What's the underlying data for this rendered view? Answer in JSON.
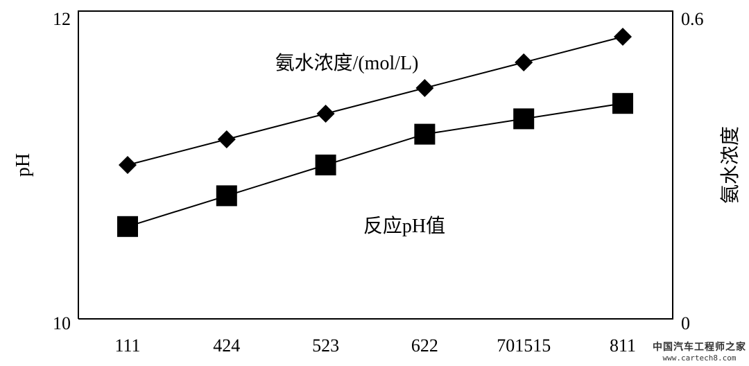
{
  "chart_data": {
    "type": "line",
    "categories": [
      "111",
      "424",
      "523",
      "622",
      "701515",
      "811"
    ],
    "y_left": {
      "label": "pH",
      "ticks": [
        "10",
        "12"
      ],
      "range": [
        10,
        12
      ]
    },
    "y_right": {
      "label": "氨水浓度",
      "ticks": [
        "0",
        "0.6"
      ],
      "range": [
        0,
        0.6
      ]
    },
    "series": [
      {
        "name": "氨水浓度/(mol/L)",
        "axis": "right",
        "marker": "diamond",
        "values": [
          0.3,
          0.35,
          0.4,
          0.45,
          0.5,
          0.55
        ]
      },
      {
        "name": "反应pH值",
        "axis": "left",
        "marker": "square",
        "values": [
          10.6,
          10.8,
          11.0,
          11.2,
          11.3,
          11.4
        ]
      }
    ],
    "grid": false,
    "legend": "inline annotations"
  },
  "watermark": {
    "text": "中国汽车工程师之家",
    "url": "www.cartech8.com"
  }
}
